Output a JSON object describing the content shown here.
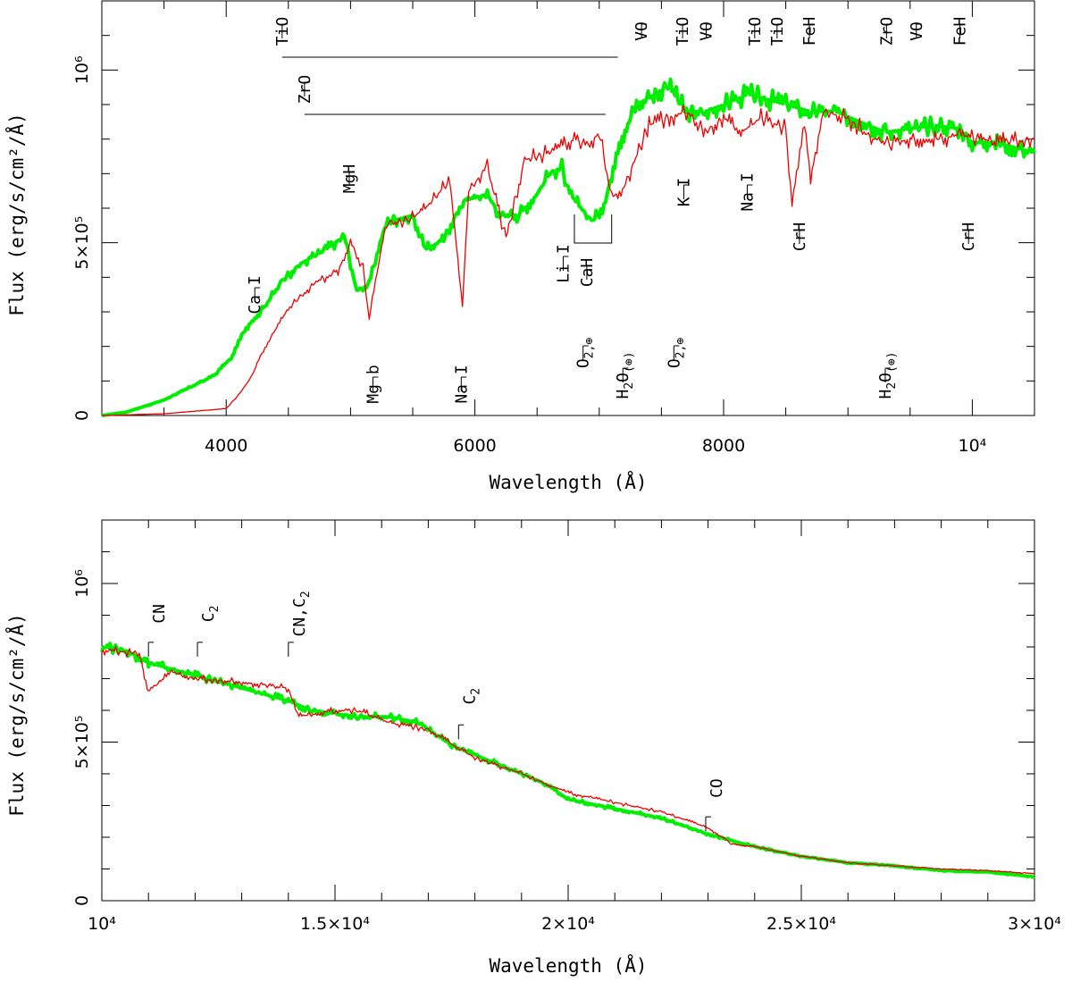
{
  "chart_data": [
    {
      "type": "line",
      "panel": "top",
      "xlabel": "Wavelength (Å)",
      "ylabel": "Flux (erg/s/cm²/Å)",
      "xlim": [
        3000,
        10500
      ],
      "ylim": [
        0,
        1200000
      ],
      "x_tick_labels": [
        {
          "x": 4000,
          "label": "4000"
        },
        {
          "x": 6000,
          "label": "6000"
        },
        {
          "x": 8000,
          "label": "8000"
        },
        {
          "x": 10000,
          "label": "10⁴"
        }
      ],
      "y_tick_labels": [
        {
          "y": 0,
          "label": "0"
        },
        {
          "y": 500000,
          "label": "5×10⁵"
        },
        {
          "y": 1000000,
          "label": "10⁶"
        }
      ],
      "series": [
        {
          "name": "green",
          "color": "#00ee00",
          "points": [
            [
              3000,
              0
            ],
            [
              3200,
              10000
            ],
            [
              3500,
              45000
            ],
            [
              3700,
              80000
            ],
            [
              3900,
              115000
            ],
            [
              4050,
              170000
            ],
            [
              4150,
              250000
            ],
            [
              4300,
              310000
            ],
            [
              4450,
              390000
            ],
            [
              4600,
              440000
            ],
            [
              4800,
              480000
            ],
            [
              4950,
              520000
            ],
            [
              5050,
              360000
            ],
            [
              5150,
              380000
            ],
            [
              5250,
              520000
            ],
            [
              5300,
              560000
            ],
            [
              5500,
              580000
            ],
            [
              5600,
              480000
            ],
            [
              5750,
              510000
            ],
            [
              5900,
              620000
            ],
            [
              6100,
              640000
            ],
            [
              6200,
              580000
            ],
            [
              6350,
              580000
            ],
            [
              6500,
              640000
            ],
            [
              6600,
              700000
            ],
            [
              6700,
              720000
            ],
            [
              6750,
              650000
            ],
            [
              6850,
              600000
            ],
            [
              6950,
              560000
            ],
            [
              7050,
              620000
            ],
            [
              7150,
              780000
            ],
            [
              7300,
              900000
            ],
            [
              7450,
              930000
            ],
            [
              7550,
              955000
            ],
            [
              7700,
              880000
            ],
            [
              7850,
              880000
            ],
            [
              8000,
              900000
            ],
            [
              8200,
              930000
            ],
            [
              8300,
              920000
            ],
            [
              8500,
              900000
            ],
            [
              8700,
              880000
            ],
            [
              8900,
              880000
            ],
            [
              9100,
              850000
            ],
            [
              9300,
              820000
            ],
            [
              9500,
              830000
            ],
            [
              9700,
              840000
            ],
            [
              9900,
              830000
            ],
            [
              10000,
              790000
            ],
            [
              10200,
              790000
            ],
            [
              10500,
              760000
            ]
          ]
        },
        {
          "name": "red",
          "color": "#ee0000",
          "points": [
            [
              3000,
              0
            ],
            [
              3500,
              5000
            ],
            [
              4000,
              20000
            ],
            [
              4100,
              60000
            ],
            [
              4200,
              110000
            ],
            [
              4300,
              190000
            ],
            [
              4500,
              310000
            ],
            [
              4700,
              380000
            ],
            [
              4900,
              420000
            ],
            [
              5000,
              500000
            ],
            [
              5100,
              430000
            ],
            [
              5150,
              280000
            ],
            [
              5250,
              490000
            ],
            [
              5300,
              560000
            ],
            [
              5450,
              560000
            ],
            [
              5600,
              600000
            ],
            [
              5800,
              680000
            ],
            [
              5900,
              320000
            ],
            [
              5950,
              650000
            ],
            [
              6100,
              720000
            ],
            [
              6250,
              510000
            ],
            [
              6400,
              740000
            ],
            [
              6600,
              760000
            ],
            [
              6800,
              800000
            ],
            [
              6900,
              780000
            ],
            [
              7000,
              820000
            ],
            [
              7100,
              630000
            ],
            [
              7200,
              660000
            ],
            [
              7400,
              840000
            ],
            [
              7600,
              870000
            ],
            [
              7700,
              880000
            ],
            [
              7850,
              820000
            ],
            [
              8000,
              860000
            ],
            [
              8150,
              820000
            ],
            [
              8300,
              860000
            ],
            [
              8500,
              830000
            ],
            [
              8550,
              620000
            ],
            [
              8650,
              860000
            ],
            [
              8700,
              690000
            ],
            [
              8800,
              880000
            ],
            [
              9000,
              860000
            ],
            [
              9200,
              800000
            ],
            [
              9350,
              790000
            ],
            [
              9500,
              800000
            ],
            [
              9700,
              800000
            ],
            [
              9900,
              810000
            ],
            [
              10200,
              790000
            ],
            [
              10500,
              800000
            ]
          ]
        }
      ],
      "annotations": [
        {
          "label": "TiO",
          "x": 4450
        },
        {
          "label": "VO",
          "x": 7340
        },
        {
          "label": "TiO",
          "x": 7670
        },
        {
          "label": "VO",
          "x": 7860
        },
        {
          "label": "TiO",
          "x": 8250
        },
        {
          "label": "TiO",
          "x": 8430
        },
        {
          "label": "FeH",
          "x": 8690
        },
        {
          "label": "ZrO",
          "x": 9310
        },
        {
          "label": "VO",
          "x": 9550
        },
        {
          "label": "FeH",
          "x": 9900
        },
        {
          "label": "ZrO",
          "x": 4630
        },
        {
          "label": "MgH",
          "x": 4990
        },
        {
          "label": "Ca I",
          "x": 4230
        },
        {
          "label": "Mg b",
          "x": 5180
        },
        {
          "label": "Na I",
          "x": 5890
        },
        {
          "label": "Li I",
          "x": 6710
        },
        {
          "label": "CaH",
          "x": 6900
        },
        {
          "label": "K I",
          "x": 7680
        },
        {
          "label": "Na I",
          "x": 8190
        },
        {
          "label": "CrH",
          "x": 8610
        },
        {
          "label": "CrH",
          "x": 9970
        },
        {
          "label": "O",
          "sub": "2,⊕",
          "x": 6870
        },
        {
          "label": "H",
          "sub": "2",
          "label2": "O",
          "sub2": "(⊕)",
          "x": 7190
        },
        {
          "label": "O",
          "sub": "2,⊕",
          "x": 7600
        },
        {
          "label": "H",
          "sub": "2",
          "label2": "O",
          "sub2": "(⊕)",
          "x": 9300
        }
      ]
    },
    {
      "type": "line",
      "panel": "bottom",
      "xlabel": "Wavelength (Å)",
      "ylabel": "Flux (erg/s/cm²/Å)",
      "xlim": [
        10000,
        30000
      ],
      "ylim": [
        0,
        1200000
      ],
      "x_tick_labels": [
        {
          "x": 10000,
          "label": "10⁴"
        },
        {
          "x": 15000,
          "label": "1.5×10⁴"
        },
        {
          "x": 20000,
          "label": "2×10⁴"
        },
        {
          "x": 25000,
          "label": "2.5×10⁴"
        },
        {
          "x": 30000,
          "label": "3×10⁴"
        }
      ],
      "y_tick_labels": [
        {
          "y": 0,
          "label": "0"
        },
        {
          "y": 500000,
          "label": "5×10⁵"
        },
        {
          "y": 1000000,
          "label": "10⁶"
        }
      ],
      "series": [
        {
          "name": "green",
          "color": "#00ee00",
          "points": [
            [
              10000,
              800000
            ],
            [
              10500,
              790000
            ],
            [
              11000,
              750000
            ],
            [
              12000,
              710000
            ],
            [
              13000,
              670000
            ],
            [
              14000,
              630000
            ],
            [
              14500,
              600000
            ],
            [
              15000,
              590000
            ],
            [
              15500,
              580000
            ],
            [
              16200,
              580000
            ],
            [
              16800,
              560000
            ],
            [
              17500,
              490000
            ],
            [
              18500,
              430000
            ],
            [
              19500,
              370000
            ],
            [
              20000,
              320000
            ],
            [
              21000,
              290000
            ],
            [
              22000,
              260000
            ],
            [
              23000,
              210000
            ],
            [
              24000,
              170000
            ],
            [
              25000,
              140000
            ],
            [
              26000,
              120000
            ],
            [
              27000,
              110000
            ],
            [
              28000,
              95000
            ],
            [
              29000,
              90000
            ],
            [
              30000,
              75000
            ]
          ]
        },
        {
          "name": "red",
          "color": "#ee0000",
          "points": [
            [
              10000,
              790000
            ],
            [
              10800,
              780000
            ],
            [
              11000,
              660000
            ],
            [
              11500,
              720000
            ],
            [
              12000,
              700000
            ],
            [
              13000,
              690000
            ],
            [
              14000,
              670000
            ],
            [
              14200,
              580000
            ],
            [
              15000,
              600000
            ],
            [
              15500,
              600000
            ],
            [
              16200,
              560000
            ],
            [
              17000,
              540000
            ],
            [
              18000,
              450000
            ],
            [
              19000,
              400000
            ],
            [
              20000,
              340000
            ],
            [
              21000,
              310000
            ],
            [
              22000,
              280000
            ],
            [
              23000,
              230000
            ],
            [
              23500,
              180000
            ],
            [
              24000,
              170000
            ],
            [
              25000,
              140000
            ],
            [
              26000,
              120000
            ],
            [
              27000,
              110000
            ],
            [
              28000,
              100000
            ],
            [
              29000,
              95000
            ],
            [
              30000,
              85000
            ]
          ]
        }
      ],
      "annotations": [
        {
          "label": "CN",
          "x": 11000
        },
        {
          "label": "C",
          "sub": "2",
          "x": 12050
        },
        {
          "label": "CN,C",
          "sub": "2",
          "x": 14000
        },
        {
          "label": "C",
          "sub": "2",
          "x": 17650
        },
        {
          "label": "CO",
          "x": 22950
        }
      ]
    }
  ]
}
